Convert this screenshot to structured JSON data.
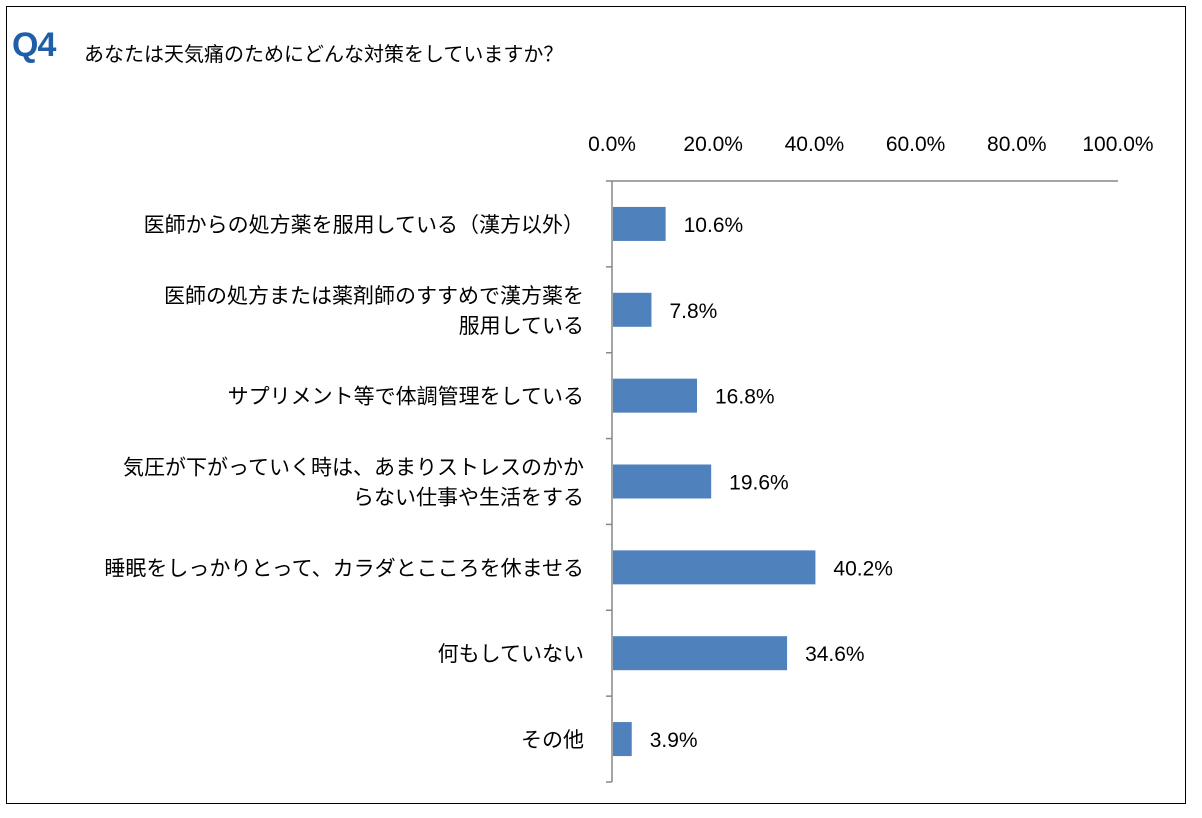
{
  "question": {
    "number": "Q4",
    "text": "あなたは天気痛のためにどんな対策をしていますか？"
  },
  "colors": {
    "bar": "#4f81bd",
    "axis": "#878787"
  },
  "chart_data": {
    "type": "bar",
    "orientation": "horizontal",
    "title": "",
    "xlabel": "",
    "ylabel": "",
    "xlim": [
      0,
      100
    ],
    "x_ticks": [
      "0.0%",
      "20.0%",
      "40.0%",
      "60.0%",
      "80.0%",
      "100.0%"
    ],
    "axis_position": "top",
    "grid": false,
    "categories": [
      [
        "医師からの処方薬を服用している（漢方以外）"
      ],
      [
        "医師の処方または薬剤師のすすめで漢方薬を",
        "服用している"
      ],
      [
        "サプリメント等で体調管理をしている"
      ],
      [
        "気圧が下がっていく時は、あまりストレスのかか",
        "らない仕事や生活をする"
      ],
      [
        "睡眠をしっかりとって、カラダとこころを休ませる"
      ],
      [
        "何もしていない"
      ],
      [
        "その他"
      ]
    ],
    "values": [
      10.6,
      7.8,
      16.8,
      19.6,
      40.2,
      34.6,
      3.9
    ],
    "data_labels": [
      "10.6%",
      "7.8%",
      "16.8%",
      "19.6%",
      "40.2%",
      "34.6%",
      "3.9%"
    ]
  }
}
